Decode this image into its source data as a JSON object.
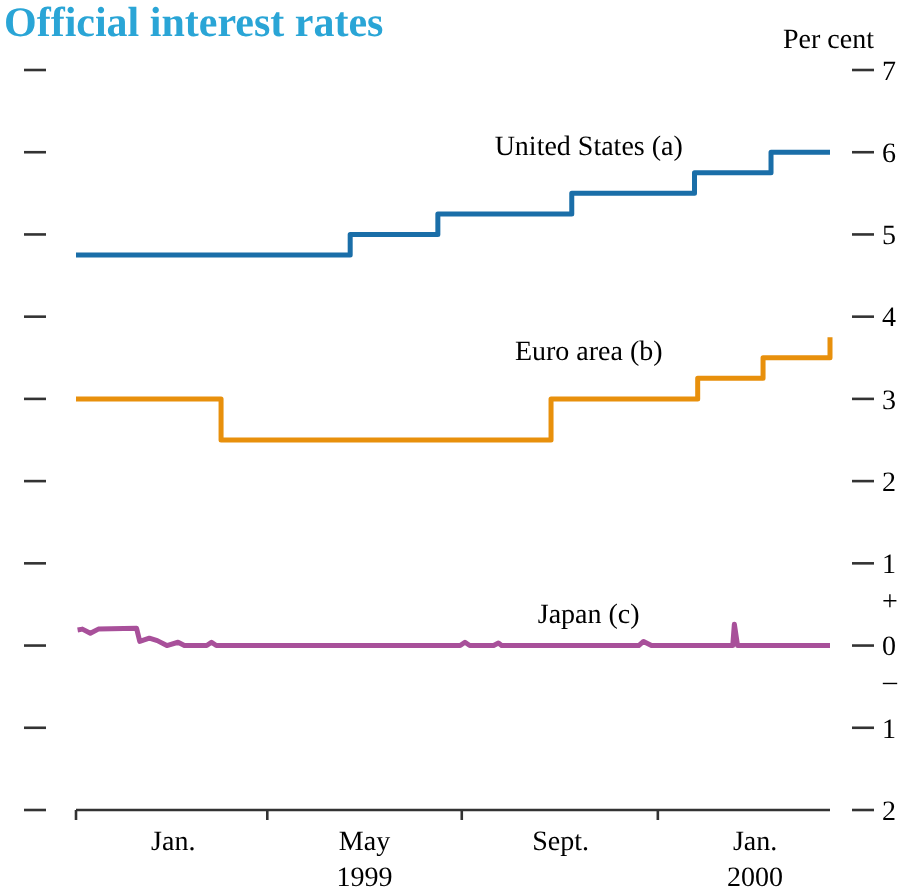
{
  "chart_data": {
    "type": "step",
    "title": "Official interest rates",
    "ylabel": "Per cent",
    "xlim": [
      "1998-11-01",
      "2000-02-17"
    ],
    "xticks": [
      {
        "value": "1998-11-01",
        "label": null
      },
      {
        "value": "1999-03-01",
        "label": null
      },
      {
        "value": "1999-07-01",
        "label": null
      },
      {
        "value": "1999-11-01",
        "label": null
      },
      {
        "value": "1999-01-01",
        "label": "Jan."
      },
      {
        "value": "1999-05-01",
        "label": "May\n1999"
      },
      {
        "value": "1999-09-01",
        "label": "Sept."
      },
      {
        "value": "2000-01-01",
        "label": "Jan.\n2000"
      }
    ],
    "ylim": [
      -2,
      7
    ],
    "yticks": [
      {
        "value": -2,
        "label": "2"
      },
      {
        "value": -1,
        "label": "1"
      },
      0,
      1,
      2,
      3,
      4,
      5,
      6,
      7
    ],
    "annotations": [
      "+",
      "–"
    ],
    "series": [
      {
        "name": "United States (a)",
        "color": "#1a6ea8",
        "x": [
          "1998-11-01",
          "1999-04-22",
          "1999-06-16",
          "1999-09-08",
          "1999-11-24",
          "2000-01-11",
          "2000-02-17"
        ],
        "values": [
          4.75,
          5.0,
          5.25,
          5.5,
          5.75,
          6.0,
          6.0
        ]
      },
      {
        "name": "Euro area (b)",
        "color": "#e8900c",
        "x": [
          "1998-11-01",
          "1999-01-31",
          "1999-08-26",
          "1999-11-26",
          "2000-01-06",
          "2000-02-17"
        ],
        "values": [
          3.0,
          2.5,
          3.0,
          3.25,
          3.5,
          3.75
        ]
      },
      {
        "name": "Japan (c)",
        "color": "#a8509a",
        "type": "line",
        "x": [
          "1998-11-02",
          "1998-11-05",
          "1998-11-10",
          "1998-11-15",
          "1998-12-09",
          "1998-12-11",
          "1998-12-17",
          "1998-12-22",
          "1998-12-28",
          "1999-01-04",
          "1999-01-08",
          "1999-01-22",
          "1999-01-25",
          "1999-01-28",
          "1999-06-30",
          "1999-07-03",
          "1999-07-06",
          "1999-07-21",
          "1999-07-24",
          "1999-07-26",
          "1999-10-20",
          "1999-10-23",
          "1999-10-28",
          "1999-12-18",
          "1999-12-19",
          "1999-12-21",
          "2000-02-17"
        ],
        "values": [
          0.19,
          0.2,
          0.15,
          0.2,
          0.21,
          0.05,
          0.09,
          0.06,
          0,
          0.04,
          0,
          0,
          0.04,
          0,
          0,
          0.04,
          0,
          0,
          0.03,
          0,
          0,
          0.05,
          0,
          0,
          0.26,
          0,
          0
        ]
      }
    ]
  }
}
